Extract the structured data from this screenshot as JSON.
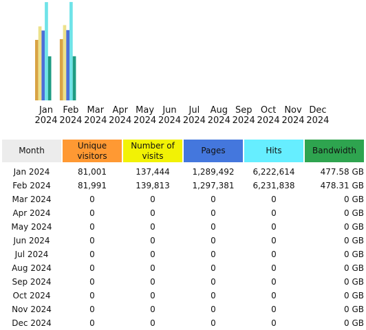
{
  "chart_data": {
    "type": "bar",
    "categories": [
      "Jan 2024",
      "Feb 2024",
      "Mar 2024",
      "Apr 2024",
      "May 2024",
      "Jun 2024",
      "Jul 2024",
      "Aug 2024",
      "Sep 2024",
      "Oct 2024",
      "Nov 2024",
      "Dec 2024"
    ],
    "category_lines": [
      [
        "Jan",
        "2024"
      ],
      [
        "Feb",
        "2024"
      ],
      [
        "Mar",
        "2024"
      ],
      [
        "Apr",
        "2024"
      ],
      [
        "May",
        "2024"
      ],
      [
        "Jun",
        "2024"
      ],
      [
        "Jul",
        "2024"
      ],
      [
        "Aug",
        "2024"
      ],
      [
        "Sep",
        "2024"
      ],
      [
        "Oct",
        "2024"
      ],
      [
        "Nov",
        "2024"
      ],
      [
        "Dec",
        "2024"
      ]
    ],
    "series": [
      {
        "name": "Unique visitors",
        "values": [
          81001,
          81991,
          0,
          0,
          0,
          0,
          0,
          0,
          0,
          0,
          0,
          0
        ],
        "color": "#d9a444"
      },
      {
        "name": "Number of visits",
        "values": [
          137444,
          139813,
          0,
          0,
          0,
          0,
          0,
          0,
          0,
          0,
          0,
          0
        ],
        "color": "#ece18a"
      },
      {
        "name": "Pages",
        "values": [
          1289492,
          1297381,
          0,
          0,
          0,
          0,
          0,
          0,
          0,
          0,
          0,
          0
        ],
        "color": "#4c6fd8"
      },
      {
        "name": "Hits",
        "values": [
          6222614,
          6231838,
          0,
          0,
          0,
          0,
          0,
          0,
          0,
          0,
          0,
          0
        ],
        "color": "#6fe3e8"
      },
      {
        "name": "Bandwidth",
        "values": [
          477.58,
          478.31,
          0,
          0,
          0,
          0,
          0,
          0,
          0,
          0,
          0,
          0
        ],
        "color": "#1f9c82"
      }
    ],
    "grid": false,
    "legend": "none"
  },
  "table": {
    "headers": [
      {
        "label": "Month",
        "lines": [
          "Month"
        ],
        "color": "#ececec"
      },
      {
        "label": "Unique visitors",
        "lines": [
          "Unique",
          "visitors"
        ],
        "color": "#ff9933"
      },
      {
        "label": "Number of visits",
        "lines": [
          "Number of",
          "visits"
        ],
        "color": "#f2f205"
      },
      {
        "label": "Pages",
        "lines": [
          "Pages"
        ],
        "color": "#4477dd"
      },
      {
        "label": "Hits",
        "lines": [
          "Hits"
        ],
        "color": "#66eeff"
      },
      {
        "label": "Bandwidth",
        "lines": [
          "Bandwidth"
        ],
        "color": "#2ea44f"
      }
    ],
    "rows": [
      [
        "Jan 2024",
        "81,001",
        "137,444",
        "1,289,492",
        "6,222,614",
        "477.58 GB"
      ],
      [
        "Feb 2024",
        "81,991",
        "139,813",
        "1,297,381",
        "6,231,838",
        "478.31 GB"
      ],
      [
        "Mar 2024",
        "0",
        "0",
        "0",
        "0",
        "0 GB"
      ],
      [
        "Apr 2024",
        "0",
        "0",
        "0",
        "0",
        "0 GB"
      ],
      [
        "May 2024",
        "0",
        "0",
        "0",
        "0",
        "0 GB"
      ],
      [
        "Jun 2024",
        "0",
        "0",
        "0",
        "0",
        "0 GB"
      ],
      [
        "Jul 2024",
        "0",
        "0",
        "0",
        "0",
        "0 GB"
      ],
      [
        "Aug 2024",
        "0",
        "0",
        "0",
        "0",
        "0 GB"
      ],
      [
        "Sep 2024",
        "0",
        "0",
        "0",
        "0",
        "0 GB"
      ],
      [
        "Oct 2024",
        "0",
        "0",
        "0",
        "0",
        "0 GB"
      ],
      [
        "Nov 2024",
        "0",
        "0",
        "0",
        "0",
        "0 GB"
      ],
      [
        "Dec 2024",
        "0",
        "0",
        "0",
        "0",
        "0 GB"
      ]
    ]
  }
}
